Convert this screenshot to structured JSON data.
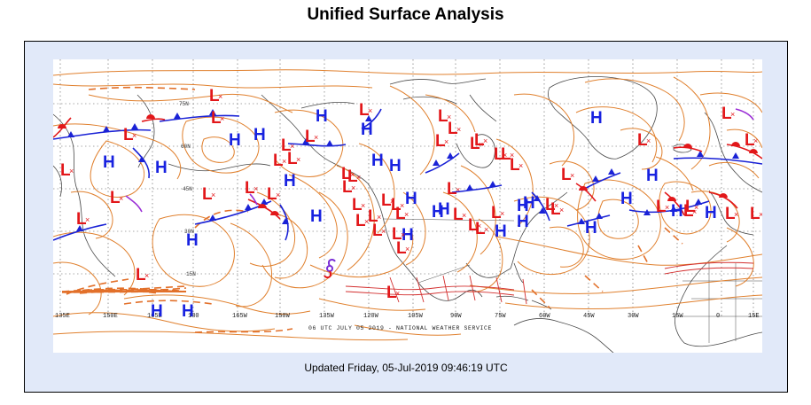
{
  "page": {
    "title": "Unified Surface Analysis",
    "updated": "Updated Friday, 05-Jul-2019 09:46:19 UTC"
  },
  "map": {
    "product_stamp": "06 UTC JULY 05 2019 - NATIONAL WEATHER SERVICE",
    "longitude_labels": [
      "135E",
      "150E",
      "165E",
      "180",
      "165W",
      "150W",
      "135W",
      "120W",
      "105W",
      "90W",
      "75W",
      "60W",
      "45W",
      "30W",
      "15W",
      "0",
      "15E"
    ],
    "latitude_labels": [
      "75N",
      "60N",
      "45N",
      "30N",
      "15N"
    ],
    "high_label": "H",
    "low_label": "L",
    "colors": {
      "high": "#1822e0",
      "low": "#e2171a",
      "isobar": "#e0802e",
      "cold_front": "#1a22d6",
      "warm_front": "#e2171a",
      "coastline": "#4a4a4a",
      "trough": "#e2702a",
      "itcz": "#d32f2f",
      "tropical_symbol": "#7b2fd6",
      "panel_background": "#e1e9f9"
    },
    "highs_count": 27,
    "lows_count": 52,
    "tropical_cyclone_symbol": "tropical-storm-icon"
  }
}
